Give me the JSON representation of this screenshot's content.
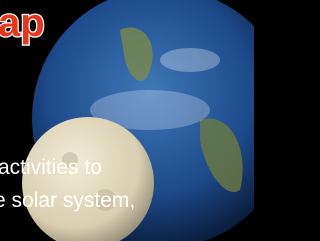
{
  "header": {
    "title": "ap"
  },
  "body": {
    "lines": [
      "activities to",
      "e solar system,"
    ]
  }
}
